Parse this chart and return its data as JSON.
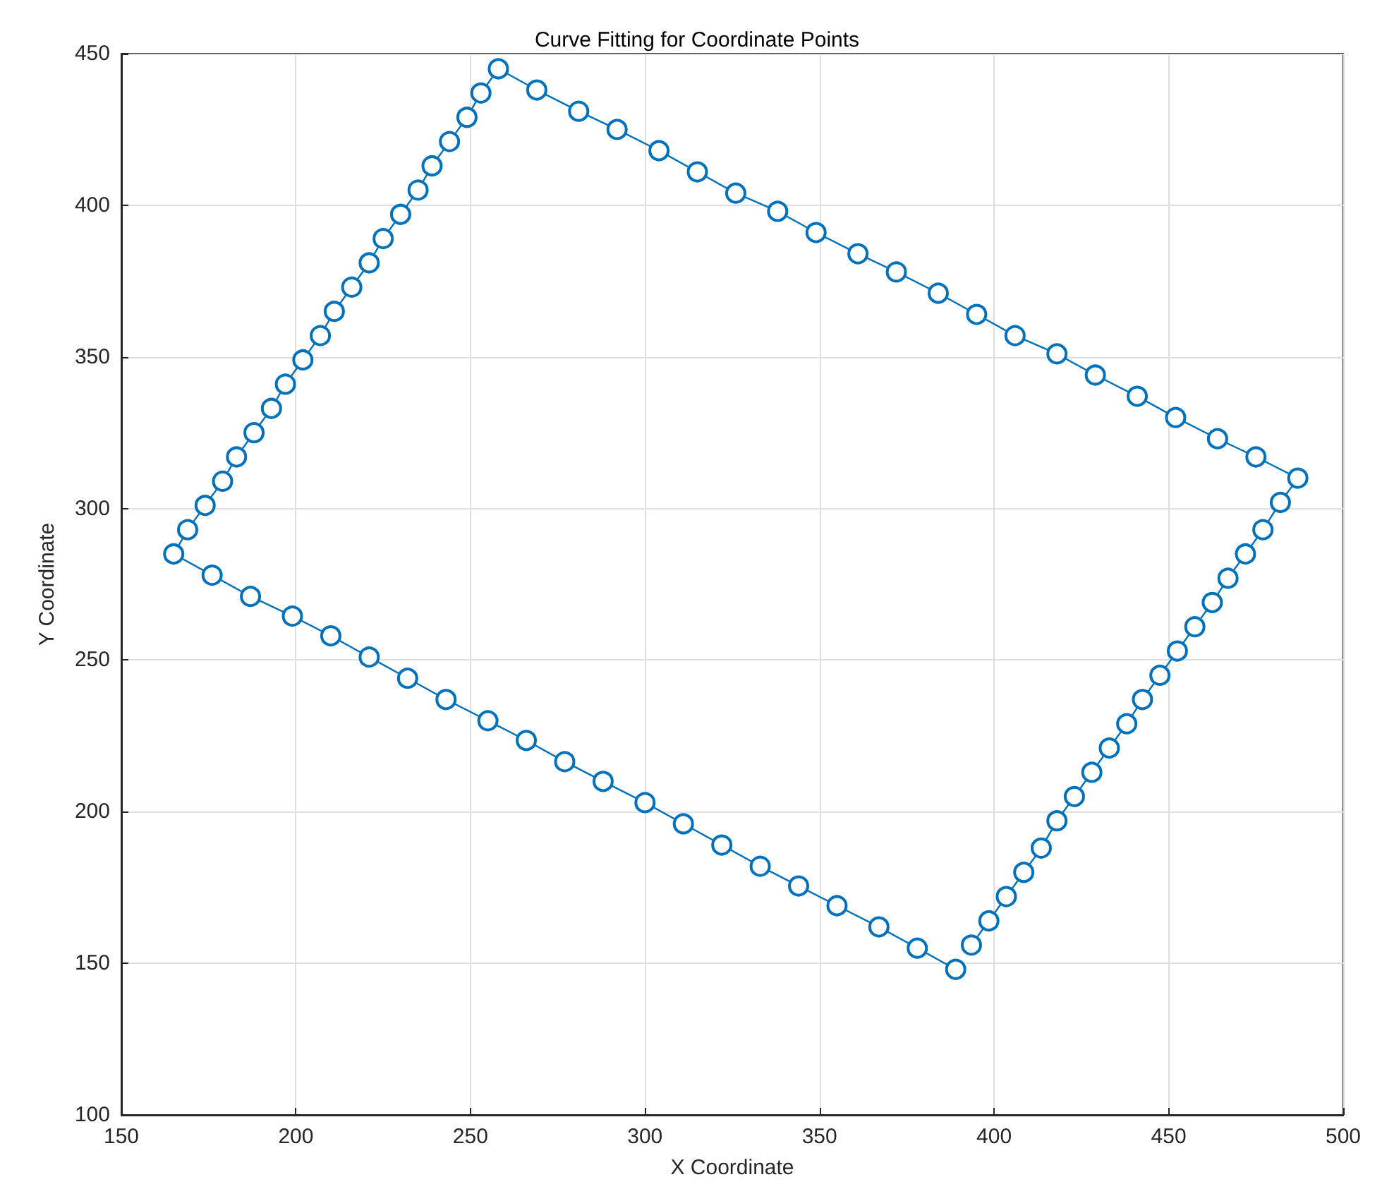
{
  "chart_data": {
    "type": "line",
    "title": "Curve Fitting for Coordinate Points",
    "xlabel": "X Coordinate",
    "ylabel": "Y Coordinate",
    "x": [
      393.5,
      398.5,
      403.5,
      408.5,
      413.5,
      418,
      423,
      428,
      433,
      438,
      442.5,
      447.5,
      452.5,
      457.5,
      462.5,
      467,
      472,
      477,
      482,
      487,
      475,
      464,
      452,
      441,
      429,
      418,
      406,
      395,
      384,
      372,
      361,
      349,
      338,
      326,
      315,
      304,
      292,
      281,
      269,
      258,
      253,
      249,
      244,
      239,
      235,
      230,
      225,
      221,
      216,
      211,
      207,
      202,
      197,
      193,
      188,
      183,
      179,
      174,
      169,
      165,
      176,
      187,
      199,
      210,
      221,
      232,
      243,
      255,
      266,
      277,
      288,
      300,
      311,
      322,
      333,
      344,
      355,
      367,
      378,
      389
    ],
    "series": [
      {
        "color": "#0072bd",
        "values": [
          156,
          164,
          172,
          180,
          188,
          197,
          205,
          213,
          221,
          229,
          237,
          245,
          253,
          261,
          269,
          277,
          285,
          293,
          302,
          310,
          317,
          323,
          330,
          337,
          344,
          351,
          357,
          364,
          371,
          378,
          384,
          391,
          398,
          404,
          411,
          418,
          425,
          431,
          438,
          445,
          437,
          429,
          421,
          413,
          405,
          397,
          389,
          381,
          373,
          365,
          357,
          349,
          341,
          333,
          325,
          317,
          309,
          301,
          293,
          285,
          278,
          271,
          264.5,
          258,
          251,
          244,
          237,
          230,
          223.5,
          216.5,
          210,
          203,
          196,
          189,
          182,
          175.5,
          169,
          162,
          155,
          148
        ]
      }
    ],
    "xlim": [
      150,
      500
    ],
    "ylim": [
      100,
      450
    ],
    "xticks": [
      150,
      200,
      250,
      300,
      350,
      400,
      450,
      500
    ],
    "yticks": [
      100,
      150,
      200,
      250,
      300,
      350,
      400,
      450
    ],
    "grid": true,
    "marker": "circle",
    "line_style": "solid"
  }
}
